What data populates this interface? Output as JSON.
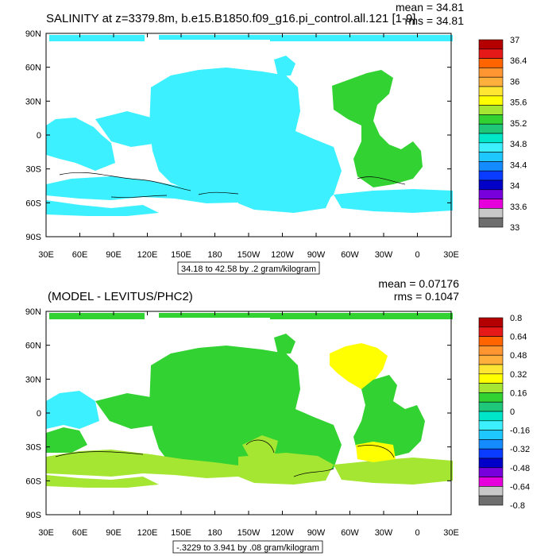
{
  "chart_data": [
    {
      "type": "heatmap",
      "title": "SALINITY at z=3379.8m, b.e15.B1850.f09_g16.pi_control.all.121 [1-9]",
      "stats": {
        "mean": "mean = 34.81",
        "rms": "rms = 34.81"
      },
      "x_ticks": [
        "30E",
        "60E",
        "90E",
        "120E",
        "150E",
        "180",
        "150W",
        "120W",
        "90W",
        "60W",
        "30W",
        "0",
        "30E"
      ],
      "y_ticks": [
        "90N",
        "60N",
        "30N",
        "0",
        "30S",
        "60S",
        "90S"
      ],
      "ylim": [
        -90,
        90
      ],
      "xlim_lon_east": [
        30,
        390
      ],
      "contour_info": "34.18 to 42.58 by .2 gram/kilogram",
      "colorbar": {
        "labels": [
          "37",
          "36.4",
          "36",
          "35.6",
          "35.2",
          "34.8",
          "34.4",
          "34",
          "33.6",
          "33"
        ],
        "colors": [
          "#b40000",
          "#e61919",
          "#ff6400",
          "#ff9632",
          "#ffaf3c",
          "#ffe632",
          "#ffff00",
          "#a5e632",
          "#32d232",
          "#1ec878",
          "#00e6c8",
          "#3cf0ff",
          "#1ec8ff",
          "#148cff",
          "#0a3cff",
          "#0000c8",
          "#7800dc",
          "#e600dc",
          "#c8c8c8",
          "#6e6e6e"
        ]
      },
      "field_colors": {
        "dominant": "#3cf0ff",
        "atlantic": "#32d232"
      }
    },
    {
      "type": "heatmap",
      "title": "(MODEL - LEVITUS/PHC2)",
      "stats": {
        "mean": "mean = 0.07176",
        "rms": "rms = 0.1047"
      },
      "x_ticks": [
        "30E",
        "60E",
        "90E",
        "120E",
        "150E",
        "180",
        "150W",
        "120W",
        "90W",
        "60W",
        "30W",
        "0",
        "30E"
      ],
      "y_ticks": [
        "90N",
        "60N",
        "30N",
        "0",
        "30S",
        "60S",
        "90S"
      ],
      "ylim": [
        -90,
        90
      ],
      "xlim_lon_east": [
        30,
        390
      ],
      "contour_info": "-.3229 to 3.941 by .08 gram/kilogram",
      "colorbar": {
        "labels": [
          "0.8",
          "0.64",
          "0.48",
          "0.32",
          "0.16",
          "0",
          "-0.16",
          "-0.32",
          "-0.48",
          "-0.64",
          "-0.8"
        ],
        "colors": [
          "#b40000",
          "#e61919",
          "#ff6400",
          "#ff9632",
          "#ffaf3c",
          "#ffe632",
          "#ffff00",
          "#a5e632",
          "#32d232",
          "#1ec878",
          "#00e6c8",
          "#3cf0ff",
          "#1ec8ff",
          "#148cff",
          "#0a3cff",
          "#0000c8",
          "#7800dc",
          "#e600dc",
          "#c8c8c8",
          "#6e6e6e"
        ]
      },
      "field_colors": {
        "dominant": "#32d232",
        "south": "#a5e632",
        "atlantic_north": "#ffff00",
        "coastal": "#3cf0ff"
      }
    }
  ]
}
